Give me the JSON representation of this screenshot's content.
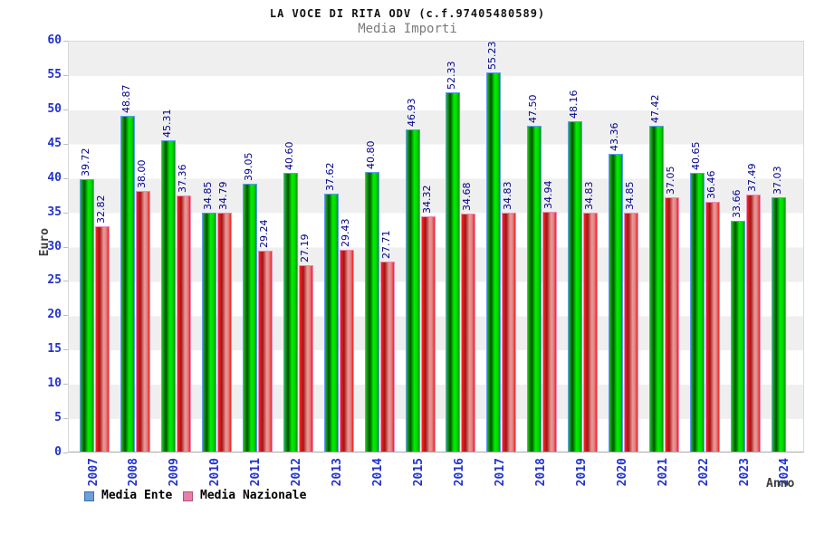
{
  "header": {
    "title": "LA VOCE DI RITA ODV (c.f.97405480589)",
    "subtitle": "Media Importi"
  },
  "axes": {
    "y_label": "Euro",
    "x_label": "Anno"
  },
  "legend": [
    {
      "label": "Media Ente",
      "swatch_color": "#6ca0dc",
      "swatch_border": "#3a6ea5"
    },
    {
      "label": "Media Nazionale",
      "swatch_color": "#e87fa8",
      "swatch_border": "#b1507e"
    }
  ],
  "chart_data": {
    "type": "bar",
    "title": "LA VOCE DI RITA ODV (c.f.97405480589)",
    "subtitle": "Media Importi",
    "xlabel": "Anno",
    "ylabel": "Euro",
    "ylim": [
      0,
      60
    ],
    "ytick_step": 5,
    "grid": "horizontal-bands",
    "legend_position": "bottom-left",
    "categories": [
      "2007",
      "2008",
      "2009",
      "2010",
      "2011",
      "2012",
      "2013",
      "2014",
      "2015",
      "2016",
      "2017",
      "2018",
      "2019",
      "2020",
      "2021",
      "2022",
      "2023",
      "2024"
    ],
    "series": [
      {
        "name": "Media Ente",
        "bar_color": "#00cc00",
        "values": [
          39.72,
          48.87,
          45.31,
          34.85,
          39.05,
          40.6,
          37.62,
          40.8,
          46.93,
          52.33,
          55.23,
          47.5,
          48.16,
          43.36,
          47.42,
          40.65,
          33.66,
          37.03
        ]
      },
      {
        "name": "Media Nazionale",
        "bar_color": "#ee3333",
        "values": [
          32.82,
          38.0,
          37.36,
          34.79,
          29.24,
          27.19,
          29.43,
          27.71,
          34.32,
          34.68,
          34.83,
          34.94,
          34.83,
          34.85,
          37.05,
          36.46,
          37.49,
          null
        ]
      }
    ],
    "value_label_color": "#00008b",
    "tick_label_color": "#2233cc"
  }
}
